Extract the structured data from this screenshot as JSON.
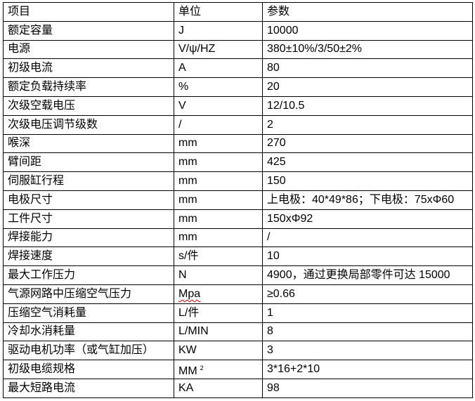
{
  "header": {
    "item": "项目",
    "unit": "单位",
    "param": "参数"
  },
  "rows": [
    {
      "item": "额定容量",
      "unit": "J",
      "param": "10000"
    },
    {
      "item": "电源",
      "unit": "V/ψ/HZ",
      "param": "380±10%/3/50±2%"
    },
    {
      "item": "初级电流",
      "unit": "A",
      "param": "80"
    },
    {
      "item": "额定负载持续率",
      "unit": "%",
      "param": "20"
    },
    {
      "item": "次级空载电压",
      "unit": "V",
      "param": "12/10.5"
    },
    {
      "item": "次级电压调节级数",
      "unit": "/",
      "param": "2"
    },
    {
      "item": "喉深",
      "unit": "mm",
      "param": "270"
    },
    {
      "item": "臂间距",
      "unit": "mm",
      "param": "425"
    },
    {
      "item": "伺服缸行程",
      "unit": "mm",
      "param": "150"
    },
    {
      "item": "电极尺寸",
      "unit": "mm",
      "param": "上电极：40*49*86；下电极：75xΦ60"
    },
    {
      "item": "工件尺寸",
      "unit": "mm",
      "param": "150xΦ92"
    },
    {
      "item": "焊接能力",
      "unit": "mm",
      "param": "/"
    },
    {
      "item": "焊接速度",
      "unit": "s/件",
      "param": "10"
    },
    {
      "item": "最大工作压力",
      "unit": "N",
      "param": "4900，通过更换局部零件可达 15000"
    },
    {
      "item": "气源网路中压缩空气压力",
      "unit": "Mpa",
      "param": "≥0.66"
    },
    {
      "item": "压缩空气消耗量",
      "unit": "L/件",
      "param": "1"
    },
    {
      "item": "冷却水消耗量",
      "unit": "L/MIN",
      "param": "8"
    },
    {
      "item": "驱动电机功率（或气缸加压）",
      "unit": "KW",
      "param": "3"
    },
    {
      "item": "初级电缆规格",
      "unit": "MM",
      "unit_sup": "2",
      "param": "3*16+2*10"
    },
    {
      "item": "最大短路电流",
      "unit": "KA",
      "param": "98"
    }
  ]
}
